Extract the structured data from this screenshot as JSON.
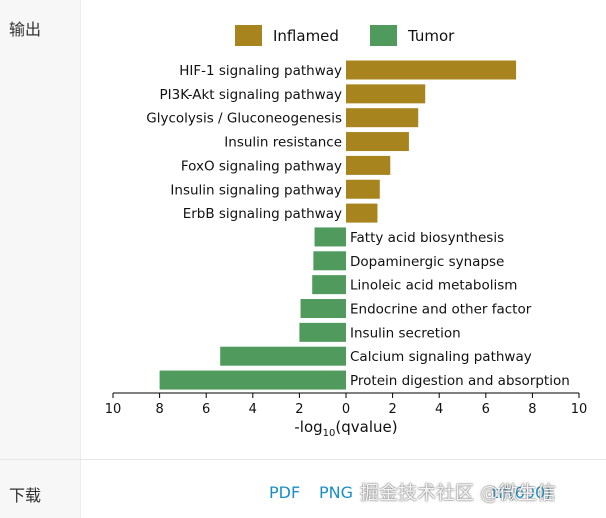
{
  "sidebar": {
    "output_label": "输出",
    "download_label": "下载"
  },
  "downloads": {
    "pdf_label": "PDF",
    "png_label": "PNG",
    "extra_label": "tif(600)"
  },
  "watermark": "掘金技术社区 @微生信",
  "chart_data": {
    "type": "bar",
    "orientation": "horizontal",
    "xlabel": "-log10(qvalue)",
    "xlabel_base": "-log",
    "xlabel_sub": "10",
    "xlabel_rest": "(qvalue)",
    "xlim": [
      -10,
      10
    ],
    "xticks": [
      -10,
      -8,
      -6,
      -4,
      -2,
      0,
      2,
      4,
      6,
      8,
      10
    ],
    "xtick_labels": [
      "10",
      "8",
      "6",
      "4",
      "2",
      "0",
      "2",
      "4",
      "6",
      "8",
      "10"
    ],
    "legend_position": "top",
    "series": [
      {
        "name": "Inflamed",
        "color": "#a8841f"
      },
      {
        "name": "Tumor",
        "color": "#4f9a5c"
      }
    ],
    "bars": [
      {
        "label": "HIF-1 signaling pathway",
        "value": 7.3,
        "series": "Inflamed"
      },
      {
        "label": "PI3K-Akt signaling pathway",
        "value": 3.4,
        "series": "Inflamed"
      },
      {
        "label": "Glycolysis / Gluconeogenesis",
        "value": 3.1,
        "series": "Inflamed"
      },
      {
        "label": "Insulin resistance",
        "value": 2.7,
        "series": "Inflamed"
      },
      {
        "label": "FoxO signaling pathway",
        "value": 1.9,
        "series": "Inflamed"
      },
      {
        "label": "Insulin signaling pathway",
        "value": 1.45,
        "series": "Inflamed"
      },
      {
        "label": "ErbB signaling pathway",
        "value": 1.35,
        "series": "Inflamed"
      },
      {
        "label": "Fatty acid biosynthesis",
        "value": -1.35,
        "series": "Tumor"
      },
      {
        "label": "Dopaminergic synapse",
        "value": -1.4,
        "series": "Tumor"
      },
      {
        "label": "Linoleic acid metabolism",
        "value": -1.45,
        "series": "Tumor"
      },
      {
        "label": "Endocrine and other factor",
        "value": -1.95,
        "series": "Tumor"
      },
      {
        "label": "Insulin secretion",
        "value": -2.0,
        "series": "Tumor"
      },
      {
        "label": "Calcium signaling pathway",
        "value": -5.4,
        "series": "Tumor"
      },
      {
        "label": "Protein digestion and absorption",
        "value": -8.0,
        "series": "Tumor"
      }
    ]
  }
}
